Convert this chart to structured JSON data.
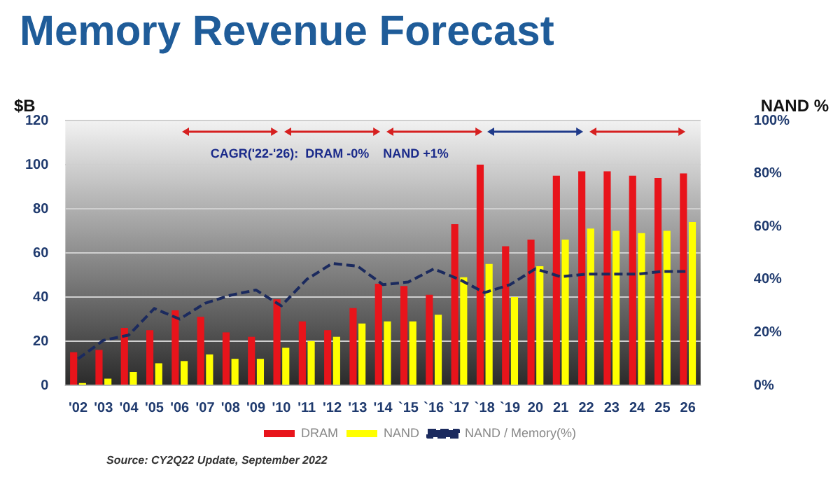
{
  "chart_data": {
    "type": "bar",
    "title": "Memory Revenue Forecast",
    "ylabel": "$B",
    "y2label": "NAND %",
    "categories": [
      "'02",
      "'03",
      "'04",
      "'05",
      "'06",
      "'07",
      "'08",
      "'09",
      "'10",
      "'11",
      "'12",
      "'13",
      "'14",
      "`15",
      "`16",
      "`17",
      "`18",
      "`19",
      "20",
      "21",
      "22",
      "23",
      "24",
      "25",
      "26"
    ],
    "series": [
      {
        "name": "DRAM",
        "color": "#e8141b",
        "values": [
          15,
          16,
          26,
          25,
          34,
          31,
          24,
          22,
          39,
          29,
          25,
          35,
          46,
          45,
          41,
          73,
          100,
          63,
          66,
          95,
          97,
          97,
          95,
          94,
          96
        ]
      },
      {
        "name": "NAND",
        "color": "#ffff00",
        "values": [
          1,
          3,
          6,
          10,
          11,
          14,
          12,
          12,
          17,
          20,
          22,
          28,
          29,
          29,
          32,
          49,
          55,
          40,
          54,
          66,
          71,
          70,
          69,
          70,
          74
        ]
      },
      {
        "name": "NAND / Memory(%)",
        "type": "line",
        "axis": "y2",
        "color": "#1b2a5e",
        "line_style": "dashed",
        "values": [
          10,
          17,
          19,
          29,
          25,
          31,
          34,
          36,
          30,
          40,
          46,
          45,
          38,
          39,
          44,
          40,
          35,
          38,
          44,
          41,
          42,
          42,
          42,
          43,
          43
        ]
      }
    ],
    "ylim": [
      0,
      120
    ],
    "yticks": [
      0,
      20,
      40,
      60,
      80,
      100,
      120
    ],
    "y2lim": [
      0,
      100
    ],
    "y2ticks": [
      {
        "value": 0,
        "label": "0%"
      },
      {
        "value": 20,
        "label": "20%"
      },
      {
        "value": 40,
        "label": "40%"
      },
      {
        "value": 60,
        "label": "60%"
      },
      {
        "value": 80,
        "label": "80%"
      },
      {
        "value": 100,
        "label": "100%"
      }
    ],
    "grid": "y",
    "legend": "bottom",
    "marker": "none",
    "annotations": [
      "CAGR('22-'26):  DRAM -0%    NAND +1%",
      "Source: CY2Q22 Update, September 2022"
    ]
  }
}
